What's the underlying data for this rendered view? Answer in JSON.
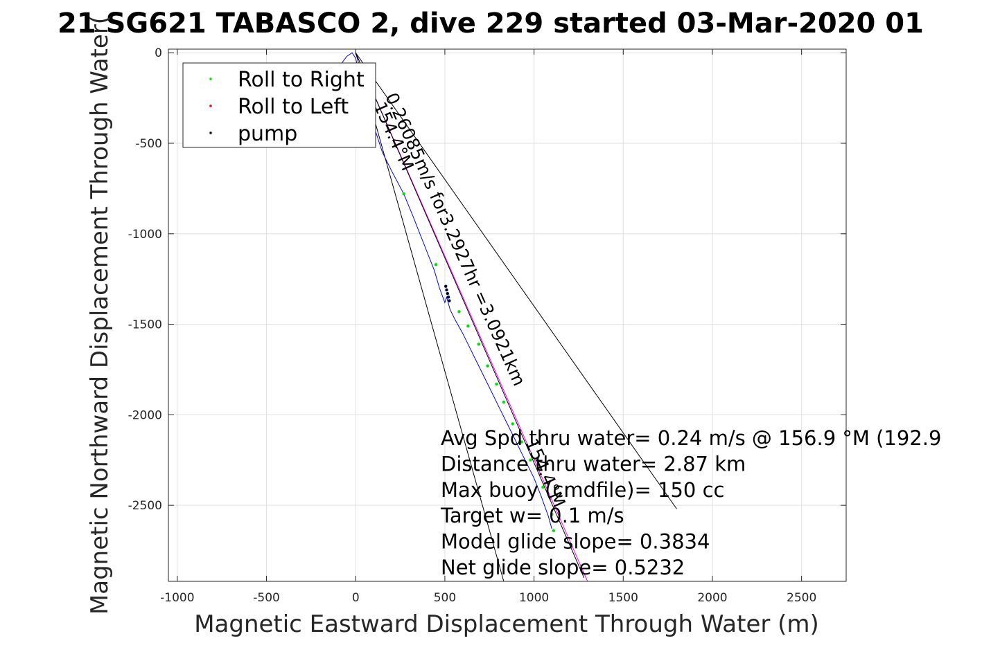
{
  "chart_data": {
    "type": "line",
    "title": "21 SG621 TABASCO 2, dive 229 started 03-Mar-2020 01",
    "xlabel": "Magnetic Eastward Displacement Through Water (m)",
    "ylabel": "Magnetic Northward Displacement Through Water(",
    "xlim": [
      -1050,
      2750
    ],
    "ylim": [
      -2920,
      20
    ],
    "xticks": [
      -1000,
      -500,
      0,
      500,
      1000,
      1500,
      2000,
      2500
    ],
    "yticks": [
      0,
      -500,
      -1000,
      -1500,
      -2000,
      -2500
    ],
    "grid": true,
    "legend_position": "top-left",
    "legend": [
      {
        "name": "Roll to Right",
        "color": "#00e000"
      },
      {
        "name": "Roll to Left",
        "color": "#ff0000"
      },
      {
        "name": "pump",
        "color": "#000033"
      }
    ],
    "track": {
      "color": "#0000ff",
      "x": [
        -80,
        -50,
        -20,
        0,
        20,
        60,
        100,
        150,
        200,
        270,
        320,
        360,
        400,
        440,
        470,
        500,
        510,
        530,
        560,
        600,
        650,
        700,
        750,
        800,
        850,
        900,
        950,
        1000,
        1040,
        1080,
        1100
      ],
      "y": [
        -60,
        -20,
        0,
        -30,
        -120,
        -250,
        -400,
        -550,
        -650,
        -780,
        -900,
        -1000,
        -1100,
        -1200,
        -1300,
        -1380,
        -1350,
        -1420,
        -1480,
        -1550,
        -1650,
        -1750,
        -1850,
        -1950,
        -2050,
        -2150,
        -2250,
        -2350,
        -2450,
        -2560,
        -2630
      ]
    },
    "roll_right_points": {
      "x": [
        270,
        450,
        520,
        580,
        630,
        690,
        740,
        790,
        830,
        880,
        930,
        980,
        1050,
        1100,
        1110
      ],
      "y": [
        -780,
        -1170,
        -1350,
        -1430,
        -1510,
        -1610,
        -1730,
        -1830,
        -1930,
        -2050,
        -2150,
        -2250,
        -2400,
        -2550,
        -2640
      ]
    },
    "pump_points": {
      "x": [
        505,
        510,
        515,
        520,
        525
      ],
      "y": [
        -1290,
        -1310,
        -1330,
        -1350,
        -1370
      ]
    },
    "ref_lines": [
      {
        "x": [
          0,
          830
        ],
        "y": [
          0,
          -2920
        ],
        "color": "#000000"
      },
      {
        "x": [
          0,
          1800
        ],
        "y": [
          0,
          -2520
        ],
        "color": "#000000"
      },
      {
        "x": [
          0,
          1300
        ],
        "y": [
          0,
          -2920
        ],
        "color": "#ff00ff"
      },
      {
        "x": [
          0,
          1280
        ],
        "y": [
          0,
          -2900
        ],
        "color": "#000000"
      }
    ],
    "rotated_labels": [
      {
        "text": "0.26085m/s for3.2927hr =3.0921km",
        "x": 165,
        "y": -240,
        "angle": 66
      },
      {
        "text": "154.4°M",
        "x": 100,
        "y": -290,
        "angle": 66
      },
      {
        "text": "154.4°M",
        "x": 950,
        "y": -2150,
        "angle": 66
      }
    ],
    "annotations": [
      "Avg Spd thru water=  0.24 m/s @ 156.9 °M (192.9",
      "Distance thru water=  2.87 km",
      "Max buoy (cmdfile)= 150 cc",
      "Target w= 0.1 m/s",
      "Model glide slope= 0.3834",
      "Net glide slope= 0.5232"
    ]
  }
}
